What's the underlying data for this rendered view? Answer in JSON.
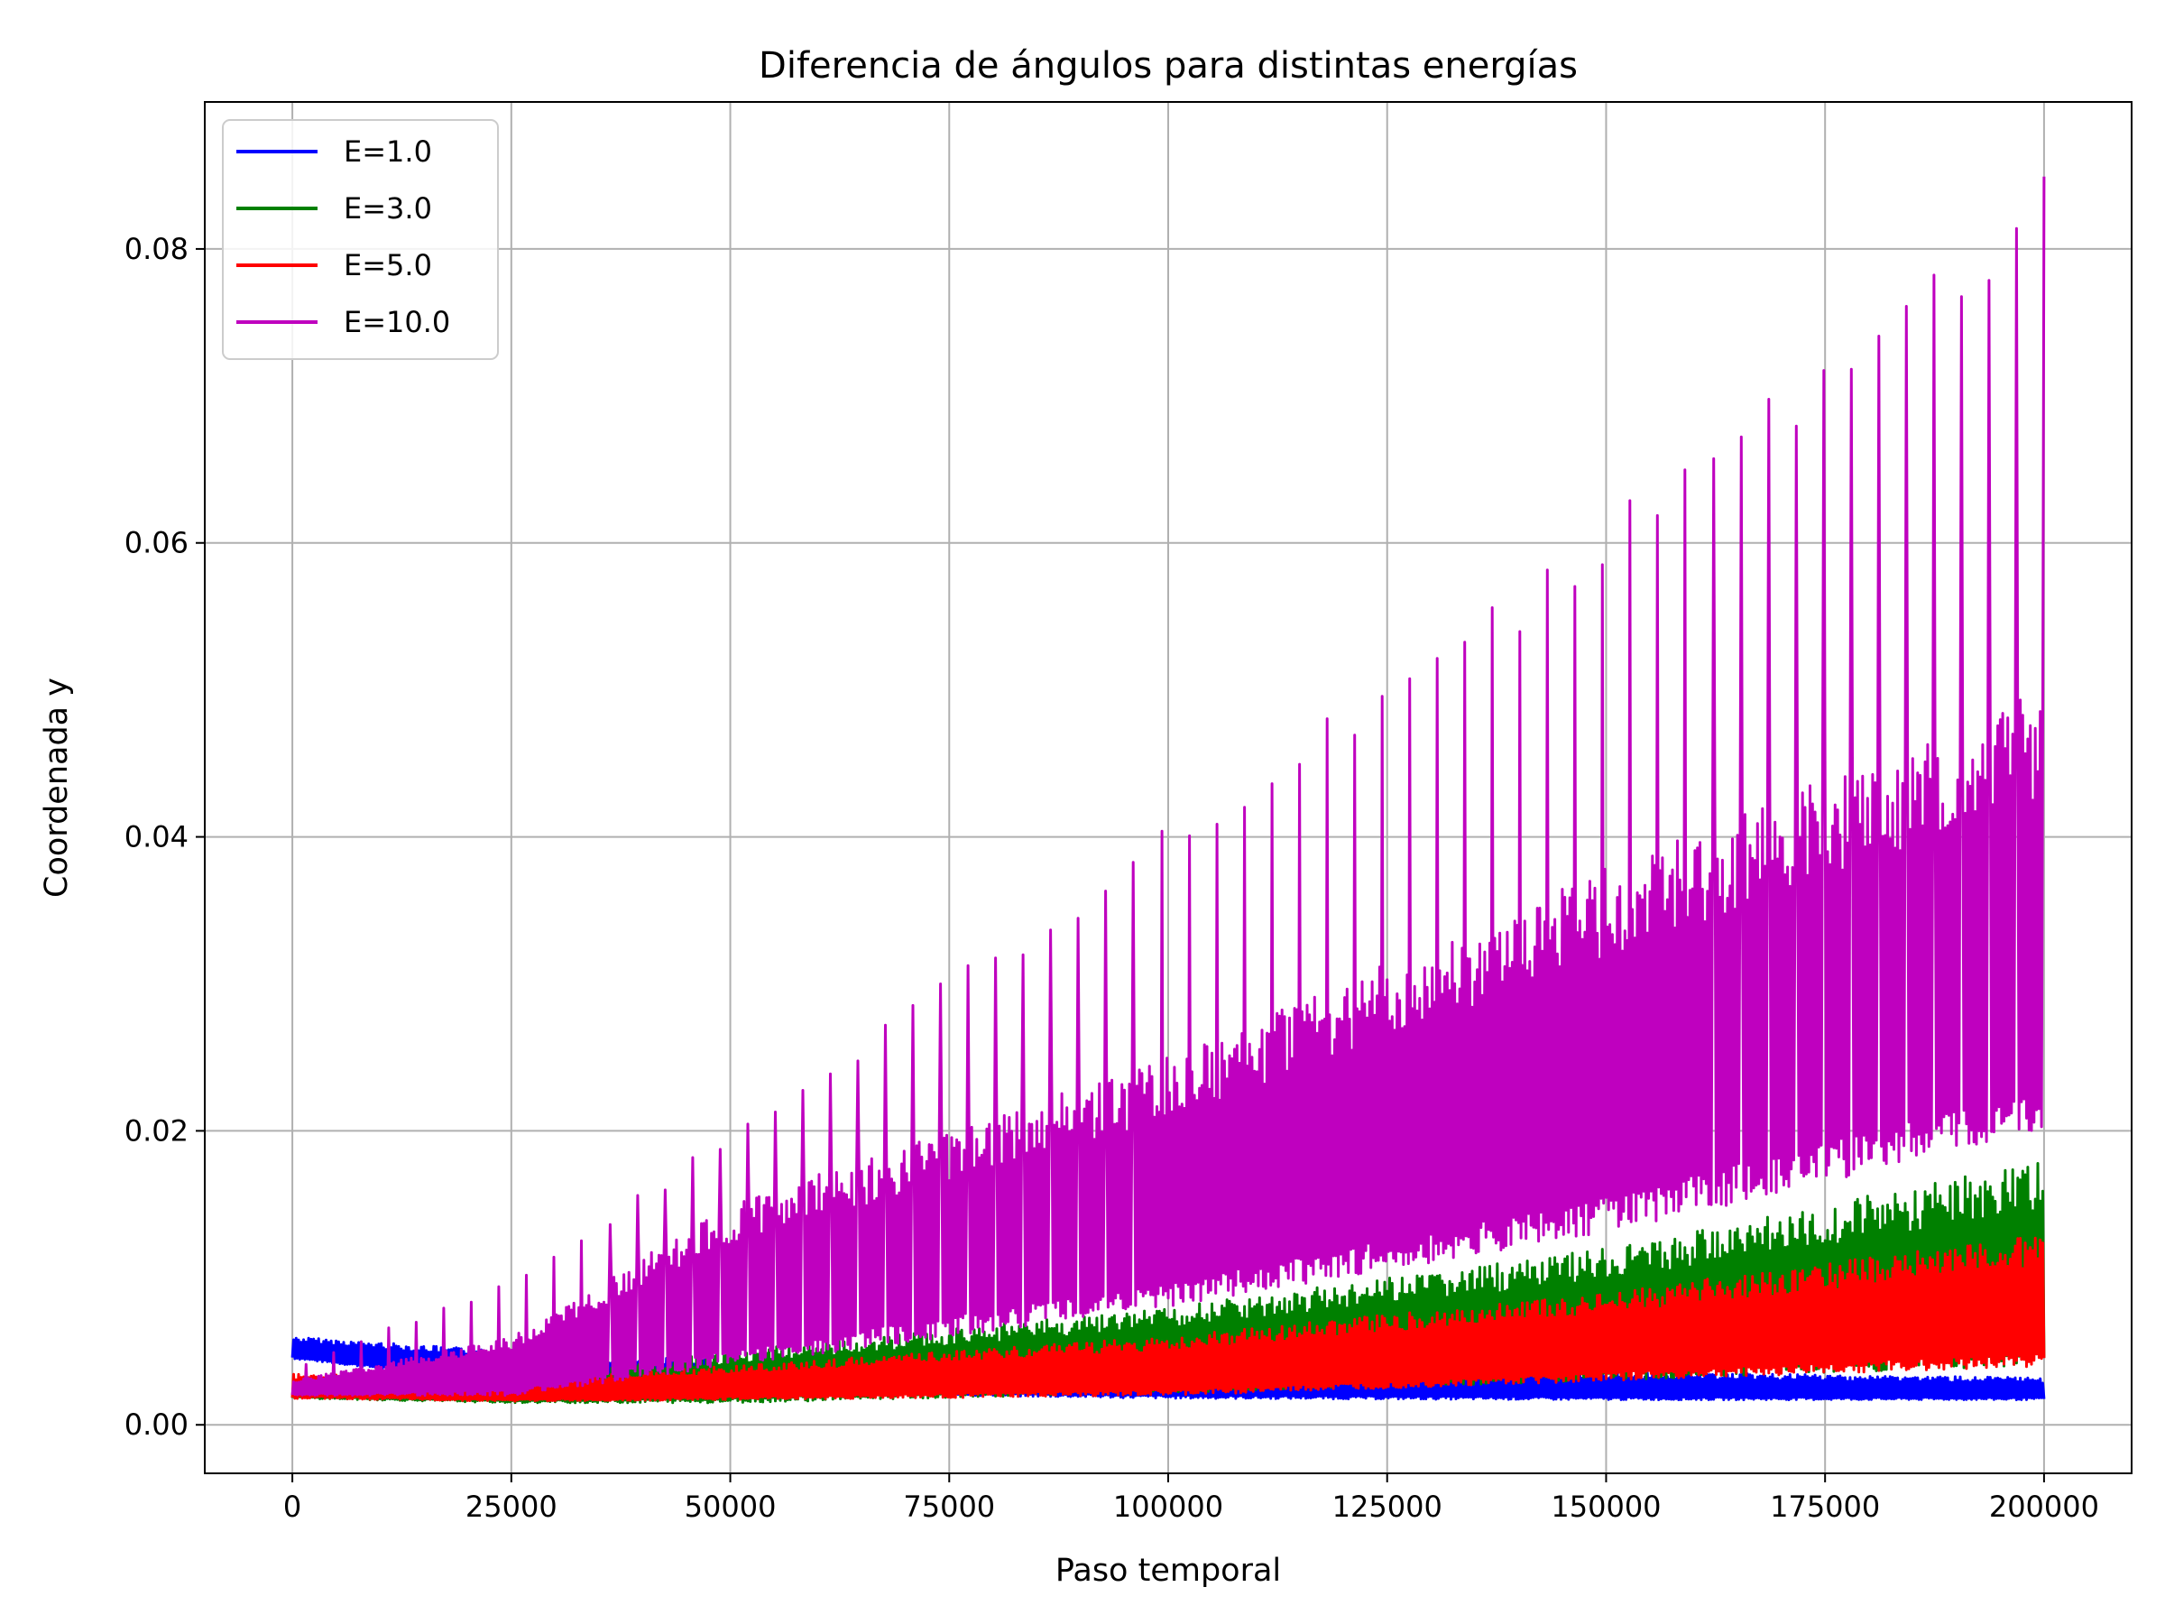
{
  "chart_data": {
    "type": "line",
    "title": "Diferencia de ángulos para distintas energías",
    "xlabel": "Paso temporal",
    "ylabel": "Coordenada y",
    "xlim": [
      -10000,
      210000
    ],
    "ylim": [
      -0.0033,
      0.09
    ],
    "xticks": [
      0,
      25000,
      50000,
      75000,
      100000,
      125000,
      150000,
      175000,
      200000
    ],
    "xtick_labels": [
      "0",
      "25000",
      "50000",
      "75000",
      "100000",
      "125000",
      "150000",
      "175000",
      "200000"
    ],
    "yticks": [
      0.0,
      0.02,
      0.04,
      0.06,
      0.08
    ],
    "ytick_labels": [
      "0.00",
      "0.02",
      "0.04",
      "0.06",
      "0.08"
    ],
    "grid": true,
    "legend_position": "top-left",
    "series": [
      {
        "name": "E=1.0",
        "color": "#0000ff",
        "x": [
          0,
          25000,
          50000,
          100000,
          150000,
          200000
        ],
        "lower": [
          0.0045,
          0.0028,
          0.0022,
          0.0018,
          0.0017,
          0.0017
        ],
        "upper": [
          0.006,
          0.005,
          0.0044,
          0.004,
          0.0036,
          0.0032
        ]
      },
      {
        "name": "E=3.0",
        "color": "#008000",
        "x": [
          0,
          25000,
          50000,
          100000,
          150000,
          200000
        ],
        "lower": [
          0.0018,
          0.0015,
          0.0015,
          0.0022,
          0.003,
          0.004
        ],
        "upper": [
          0.003,
          0.003,
          0.005,
          0.008,
          0.012,
          0.018
        ]
      },
      {
        "name": "E=5.0",
        "color": "#ff0000",
        "x": [
          0,
          25000,
          50000,
          100000,
          150000,
          200000
        ],
        "lower": [
          0.0018,
          0.0016,
          0.0017,
          0.002,
          0.003,
          0.004
        ],
        "upper": [
          0.0035,
          0.003,
          0.004,
          0.006,
          0.009,
          0.013
        ]
      },
      {
        "name": "E=10.0",
        "color": "#bf00bf",
        "x": [
          0,
          25000,
          50000,
          100000,
          150000,
          200000
        ],
        "lower": [
          0.002,
          0.002,
          0.004,
          0.008,
          0.013,
          0.02
        ],
        "upper": [
          0.003,
          0.006,
          0.015,
          0.025,
          0.038,
          0.05
        ],
        "peaks": [
          0.004,
          0.01,
          0.02,
          0.041,
          0.062,
          0.086
        ]
      }
    ]
  }
}
